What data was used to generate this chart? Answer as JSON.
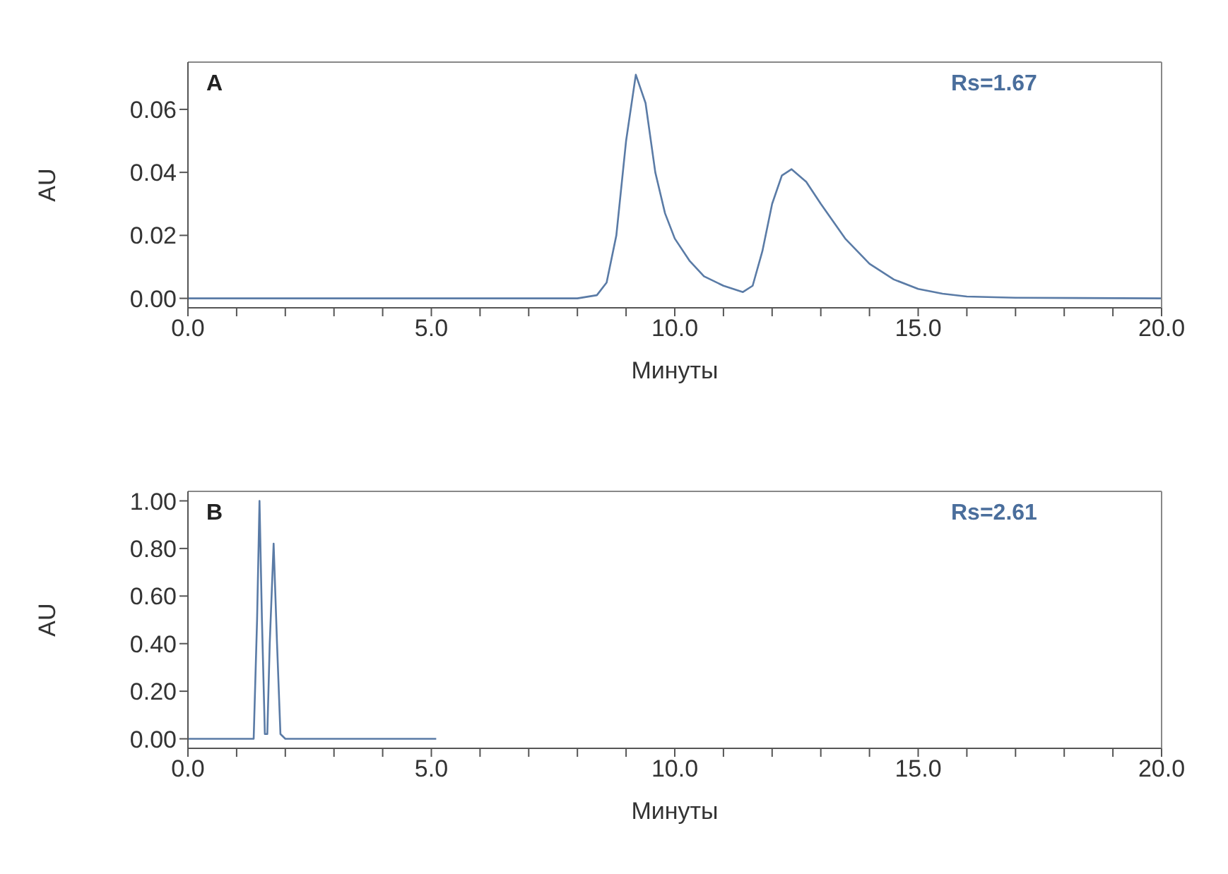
{
  "chart_data": [
    {
      "type": "line",
      "xlabel": "Минуты",
      "ylabel": "AU",
      "annotations": [
        "A",
        "Rs=1.67"
      ],
      "xlim": [
        0,
        20
      ],
      "xticks": [
        {
          "value": 0,
          "label": "0.0"
        },
        {
          "value": 1,
          "label": null
        },
        {
          "value": 2,
          "label": null
        },
        {
          "value": 3,
          "label": null
        },
        {
          "value": 4,
          "label": null
        },
        {
          "value": 5,
          "label": "5.0"
        },
        {
          "value": 6,
          "label": null
        },
        {
          "value": 7,
          "label": null
        },
        {
          "value": 8,
          "label": null
        },
        {
          "value": 9,
          "label": null
        },
        {
          "value": 10,
          "label": "10.0"
        },
        {
          "value": 11,
          "label": null
        },
        {
          "value": 12,
          "label": null
        },
        {
          "value": 13,
          "label": null
        },
        {
          "value": 14,
          "label": null
        },
        {
          "value": 15,
          "label": "15.0"
        },
        {
          "value": 16,
          "label": null
        },
        {
          "value": 17,
          "label": null
        },
        {
          "value": 18,
          "label": null
        },
        {
          "value": 19,
          "label": null
        },
        {
          "value": 20,
          "label": "20.0"
        }
      ],
      "ylim": [
        -0.003,
        0.075
      ],
      "yticks": [
        {
          "value": 0,
          "label": "0.00"
        },
        {
          "value": 0.02,
          "label": "0.02"
        },
        {
          "value": 0.04,
          "label": "0.04"
        },
        {
          "value": 0.06,
          "label": "0.06"
        }
      ],
      "series": [
        {
          "color": "#5a7ba6",
          "x": [
            0,
            8.0,
            8.4,
            8.6,
            8.8,
            9.0,
            9.2,
            9.4,
            9.6,
            9.8,
            10.0,
            10.3,
            10.6,
            11.0,
            11.4,
            11.6,
            11.8,
            12.0,
            12.2,
            12.4,
            12.7,
            13.0,
            13.5,
            14.0,
            14.5,
            15.0,
            15.5,
            16.0,
            17.0,
            20.0
          ],
          "values": [
            0,
            0,
            0.001,
            0.005,
            0.02,
            0.05,
            0.071,
            0.062,
            0.04,
            0.027,
            0.019,
            0.012,
            0.007,
            0.004,
            0.002,
            0.004,
            0.015,
            0.03,
            0.039,
            0.041,
            0.037,
            0.03,
            0.019,
            0.011,
            0.006,
            0.003,
            0.0015,
            0.0006,
            0.0002,
            0
          ]
        }
      ]
    },
    {
      "type": "line",
      "xlabel": "Минуты",
      "ylabel": "AU",
      "annotations": [
        "B",
        "Rs=2.61"
      ],
      "xlim": [
        0,
        20
      ],
      "xticks": [
        {
          "value": 0,
          "label": "0.0"
        },
        {
          "value": 1,
          "label": null
        },
        {
          "value": 2,
          "label": null
        },
        {
          "value": 3,
          "label": null
        },
        {
          "value": 4,
          "label": null
        },
        {
          "value": 5,
          "label": "5.0"
        },
        {
          "value": 6,
          "label": null
        },
        {
          "value": 7,
          "label": null
        },
        {
          "value": 8,
          "label": null
        },
        {
          "value": 9,
          "label": null
        },
        {
          "value": 10,
          "label": "10.0"
        },
        {
          "value": 11,
          "label": null
        },
        {
          "value": 12,
          "label": null
        },
        {
          "value": 13,
          "label": null
        },
        {
          "value": 14,
          "label": null
        },
        {
          "value": 15,
          "label": "15.0"
        },
        {
          "value": 16,
          "label": null
        },
        {
          "value": 17,
          "label": null
        },
        {
          "value": 18,
          "label": null
        },
        {
          "value": 19,
          "label": null
        },
        {
          "value": 20,
          "label": "20.0"
        }
      ],
      "ylim": [
        -0.04,
        1.04
      ],
      "yticks": [
        {
          "value": 0,
          "label": "0.00"
        },
        {
          "value": 0.2,
          "label": "0.20"
        },
        {
          "value": 0.4,
          "label": "0.40"
        },
        {
          "value": 0.6,
          "label": "0.60"
        },
        {
          "value": 0.8,
          "label": "0.80"
        },
        {
          "value": 1,
          "label": "1.00"
        }
      ],
      "series": [
        {
          "color": "#5a7ba6",
          "x": [
            0,
            1.35,
            1.42,
            1.47,
            1.52,
            1.58,
            1.63,
            1.68,
            1.76,
            1.83,
            1.9,
            2.0,
            5.1
          ],
          "values": [
            0,
            0,
            0.5,
            1.0,
            0.5,
            0.02,
            0.02,
            0.4,
            0.82,
            0.4,
            0.02,
            0,
            0
          ]
        }
      ]
    }
  ]
}
